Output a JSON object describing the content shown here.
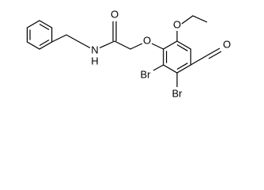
{
  "atoms": [
    "O",
    "N",
    "H",
    "O",
    "O",
    "Br",
    "Br",
    "O"
  ]
}
